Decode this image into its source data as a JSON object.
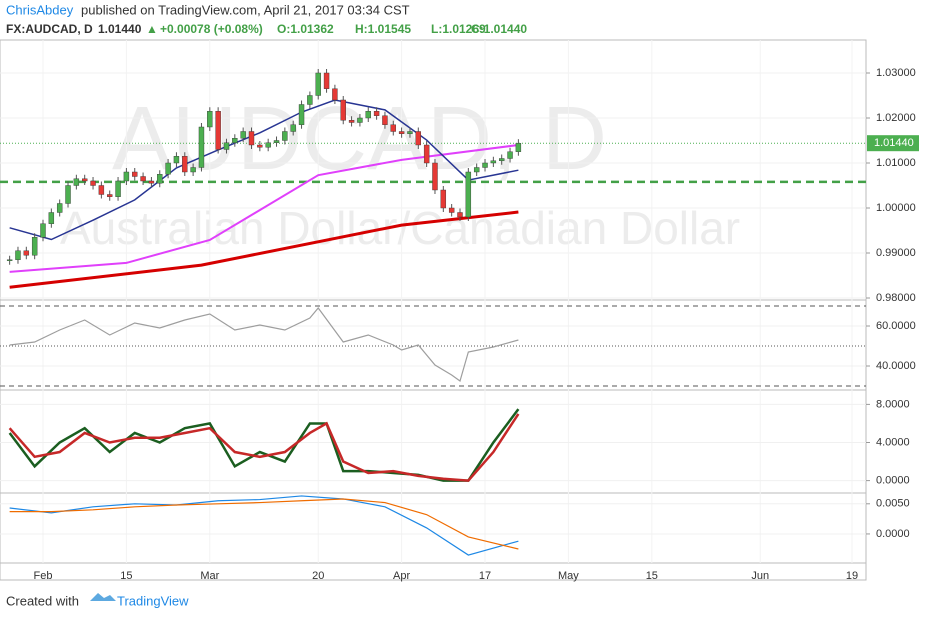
{
  "header": {
    "author": "ChrisAbdey",
    "published": "published on TradingView.com, April 21, 2017 03:34 CST",
    "symbol": "FX:AUDCAD, D",
    "price": "1.01440",
    "arrow": "▲",
    "change": "+0.00078 (+0.08%)",
    "open": "O:1.01362",
    "high": "H:1.01545",
    "low": "L:1.01269",
    "close": "C:1.01440"
  },
  "watermark": {
    "symbol": "AUDCAD, D",
    "name": "Australian Dollar/Canadian Dollar"
  },
  "footer": {
    "created": "Created with",
    "brand": "TradingView"
  },
  "chart_data": {
    "type": "candlestick",
    "closes": [
      0.9885,
      0.9905,
      0.9895,
      0.9935,
      0.9965,
      0.999,
      1.001,
      1.005,
      1.0065,
      1.006,
      1.005,
      1.003,
      1.0025,
      1.006,
      1.008,
      1.007,
      1.006,
      1.0055,
      1.0075,
      1.01,
      1.0115,
      1.008,
      1.009,
      1.018,
      1.0215,
      1.013,
      1.0145,
      1.0155,
      1.017,
      1.014,
      1.0135,
      1.0145,
      1.015,
      1.017,
      1.0185,
      1.023,
      1.025,
      1.03,
      1.0265,
      1.024,
      1.0195,
      1.019,
      1.02,
      1.0215,
      1.0205,
      1.0185,
      1.017,
      1.0165,
      1.017,
      1.014,
      1.01,
      1.004,
      1.0,
      0.999,
      0.998,
      1.008,
      1.009,
      1.01,
      1.0105,
      1.011,
      1.0125,
      1.0144
    ],
    "up_color": "#4caf50",
    "down_color": "#e53935",
    "ylim": [
      0.98,
      1.03733
    ],
    "yticks": [
      {
        "value": 1.03,
        "label": "1.03000"
      },
      {
        "value": 1.02,
        "label": "1.02000"
      },
      {
        "value": 1.01,
        "label": "1.01000"
      },
      {
        "value": 1.0,
        "label": "1.00000"
      },
      {
        "value": 0.99,
        "label": "0.99000"
      },
      {
        "value": 0.98,
        "label": "0.98000"
      }
    ],
    "last_price": {
      "value": 1.0144,
      "label": "1.01440",
      "color": "#4caf50"
    },
    "support": {
      "value": 1.0058,
      "color": "#43a047"
    },
    "xticks": [
      {
        "value": 4,
        "label": "Feb"
      },
      {
        "value": 14,
        "label": "15"
      },
      {
        "value": 24,
        "label": "Mar"
      },
      {
        "value": 37,
        "label": "20"
      },
      {
        "value": 47,
        "label": "Apr"
      },
      {
        "value": 57,
        "label": "17"
      },
      {
        "value": 67,
        "label": "May"
      },
      {
        "value": 77,
        "label": "15"
      },
      {
        "value": 90,
        "label": "Jun"
      },
      {
        "value": 101,
        "label": "19"
      }
    ],
    "overlays": [
      {
        "color": "#d50000",
        "width": 3,
        "x": [
          0,
          23,
          47,
          61
        ],
        "values": [
          0.9824,
          0.9873,
          0.9962,
          0.9991
        ]
      },
      {
        "color": "#e040fb",
        "width": 2,
        "x": [
          0,
          14,
          24,
          37,
          47,
          61
        ],
        "values": [
          0.9858,
          0.9878,
          0.9929,
          1.0073,
          1.0107,
          1.014
        ]
      },
      {
        "color": "#283593",
        "width": 1.5,
        "x": [
          0,
          5,
          10,
          15,
          20,
          25,
          30,
          35,
          39,
          45,
          50,
          55,
          61
        ],
        "values": [
          0.9956,
          0.993,
          0.9973,
          1.0018,
          1.0089,
          1.0129,
          1.0167,
          1.0213,
          1.024,
          1.0218,
          1.0151,
          1.0062,
          1.0084
        ]
      }
    ],
    "panels": [
      {
        "ylim": [
          28,
          73
        ],
        "yticks": [
          {
            "value": 60,
            "label": "60.0000"
          },
          {
            "value": 40,
            "label": "40.0000"
          }
        ],
        "levels": [
          70,
          50,
          30
        ],
        "series": [
          {
            "color": "#9e9e9e",
            "x": [
              0,
              3,
              6,
              9,
              12,
              15,
              18,
              21,
              24,
              27,
              30,
              33,
              36,
              37,
              40,
              43,
              46,
              47,
              49,
              51,
              53,
              54,
              55,
              58,
              61
            ],
            "values": [
              50.5,
              52,
              58,
              63,
              55.5,
              61.5,
              59,
              63,
              66,
              58,
              60.5,
              58,
              64,
              69,
              52,
              55.5,
              50.5,
              48,
              50.5,
              40.5,
              35.5,
              32.5,
              47,
              49.5,
              53
            ]
          }
        ]
      },
      {
        "ylim": [
          -1.3,
          9.51
        ],
        "yticks": [
          {
            "value": 8,
            "label": "8.0000"
          },
          {
            "value": 4,
            "label": "4.0000"
          },
          {
            "value": 0,
            "label": "0.0000"
          }
        ],
        "series": [
          {
            "color": "#1b5e20",
            "x": [
              0,
              3,
              6,
              9,
              12,
              15,
              18,
              21,
              24,
              27,
              30,
              33,
              36,
              38,
              40,
              43,
              46,
              49,
              52,
              55,
              58,
              61
            ],
            "values": [
              5,
              1.5,
              4,
              5.5,
              3,
              5,
              4,
              5.5,
              6,
              1.5,
              3,
              2,
              6,
              6,
              1,
              1,
              0.8,
              0.6,
              0,
              0,
              4,
              7.5
            ]
          },
          {
            "color": "#c62828",
            "x": [
              0,
              3,
              6,
              9,
              12,
              15,
              18,
              21,
              24,
              27,
              30,
              33,
              36,
              38,
              40,
              43,
              46,
              49,
              52,
              55,
              58,
              61
            ],
            "values": [
              5.5,
              2.5,
              3,
              5,
              4,
              4.5,
              4.5,
              5,
              5.5,
              3,
              2.5,
              3,
              5,
              6,
              2,
              0.8,
              1,
              0.5,
              0.2,
              0,
              3,
              7
            ]
          }
        ]
      },
      {
        "ylim": [
          -0.00482,
          0.00679
        ],
        "yticks": [
          {
            "value": 0.005,
            "label": "0.0050"
          },
          {
            "value": 0,
            "label": "0.0000"
          }
        ],
        "series": [
          {
            "color": "#1e88e5",
            "x": [
              0,
              5,
              10,
              15,
              20,
              25,
              30,
              35,
              40,
              45,
              50,
              55,
              61
            ],
            "values": [
              0.0043,
              0.0035,
              0.0045,
              0.005,
              0.0048,
              0.0055,
              0.0057,
              0.0063,
              0.0058,
              0.0045,
              0.001,
              -0.0035,
              -0.0012
            ]
          },
          {
            "color": "#ef6c00",
            "x": [
              0,
              5,
              10,
              15,
              20,
              25,
              30,
              35,
              40,
              45,
              50,
              55,
              61
            ],
            "values": [
              0.0037,
              0.0037,
              0.004,
              0.0045,
              0.0048,
              0.005,
              0.0052,
              0.0055,
              0.0058,
              0.0052,
              0.0032,
              -0.0005,
              -0.0025
            ]
          }
        ]
      }
    ]
  }
}
